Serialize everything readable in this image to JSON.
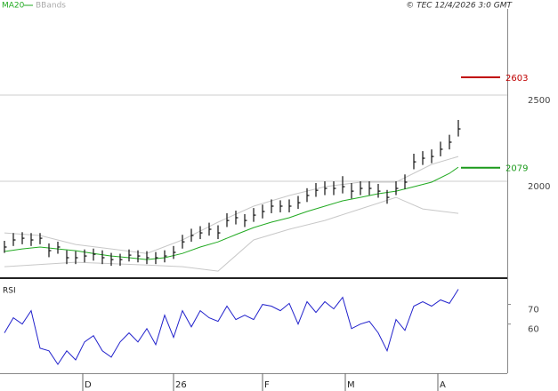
{
  "chart_data": [
    {
      "type": "ohlc",
      "source": "© TEC 12/4/2026 3:0 GMT",
      "x": [
        1,
        3,
        5,
        7,
        9,
        11,
        13,
        15,
        17,
        19,
        21,
        23,
        25,
        27,
        29,
        31,
        33,
        35,
        37,
        39,
        41,
        43,
        45,
        47,
        49,
        51,
        53,
        55,
        57,
        59,
        61,
        63,
        65,
        67,
        69,
        71,
        73,
        75,
        77,
        79,
        81,
        83,
        85,
        87,
        89,
        91,
        93,
        95,
        97,
        99,
        101,
        103
      ],
      "high": [
        1655,
        1700,
        1705,
        1700,
        1700,
        1640,
        1650,
        1600,
        1595,
        1605,
        1610,
        1600,
        1585,
        1580,
        1605,
        1600,
        1595,
        1590,
        1600,
        1625,
        1690,
        1725,
        1740,
        1760,
        1745,
        1815,
        1830,
        1810,
        1845,
        1865,
        1895,
        1890,
        1895,
        1915,
        1960,
        1990,
        2000,
        2000,
        2030,
        1990,
        2000,
        2000,
        1985,
        1950,
        2000,
        2040,
        2160,
        2175,
        2185,
        2230,
        2270,
        2356
      ],
      "low": [
        1585,
        1625,
        1635,
        1625,
        1635,
        1560,
        1580,
        1520,
        1520,
        1530,
        1540,
        1520,
        1510,
        1510,
        1535,
        1530,
        1520,
        1520,
        1530,
        1550,
        1610,
        1650,
        1665,
        1685,
        1665,
        1735,
        1750,
        1735,
        1765,
        1785,
        1815,
        1820,
        1820,
        1840,
        1880,
        1910,
        1920,
        1920,
        1930,
        1900,
        1920,
        1920,
        1905,
        1870,
        1920,
        1955,
        2070,
        2095,
        2105,
        2145,
        2185,
        2260
      ],
      "close": [
        1619,
        1660,
        1670,
        1660,
        1670,
        1598,
        1619,
        1557,
        1557,
        1567,
        1577,
        1557,
        1546,
        1546,
        1572,
        1567,
        1557,
        1557,
        1567,
        1588,
        1649,
        1686,
        1701,
        1722,
        1701,
        1773,
        1789,
        1773,
        1804,
        1825,
        1856,
        1856,
        1856,
        1876,
        1918,
        1948,
        1959,
        1959,
        1969,
        1943,
        1959,
        1959,
        1943,
        1907,
        1959,
        1995,
        2113,
        2134,
        2144,
        2186,
        2227,
        2304
      ],
      "bar_color": "#111111",
      "series": [
        {
          "name": "MA20",
          "color": "#22aa22",
          "x": [
            1,
            5,
            9,
            13,
            17,
            21,
            25,
            29,
            33,
            37,
            41,
            45,
            49,
            53,
            57,
            61,
            65,
            69,
            73,
            77,
            81,
            85,
            89,
            93,
            97,
            101,
            103
          ],
          "values": [
            1593,
            1608,
            1619,
            1608,
            1598,
            1582,
            1567,
            1557,
            1546,
            1557,
            1582,
            1619,
            1649,
            1691,
            1732,
            1763,
            1789,
            1825,
            1856,
            1887,
            1907,
            1928,
            1943,
            1969,
            1995,
            2046,
            2082
          ]
        },
        {
          "name": "BBands",
          "color": "#c8c8c8",
          "x": [
            1,
            9,
            17,
            25,
            33,
            41,
            49,
            57,
            65,
            73,
            81,
            89,
            97,
            103
          ],
          "values": [
            1701,
            1686,
            1634,
            1608,
            1582,
            1660,
            1763,
            1856,
            1918,
            1969,
            1995,
            1995,
            2098,
            2144
          ],
          "x_lower": [
            1,
            17,
            33,
            41,
            49,
            57,
            65,
            73,
            81,
            89,
            95,
            103
          ],
          "lower": [
            1505,
            1531,
            1515,
            1505,
            1479,
            1660,
            1722,
            1773,
            1840,
            1907,
            1840,
            1814
          ]
        }
      ],
      "levels": [
        {
          "value": 2603,
          "color": "#c00000"
        },
        {
          "value": 2079,
          "color": "#1a9a1a"
        }
      ],
      "ylim": [
        1454,
        3000
      ],
      "yticks": [
        2000,
        2500
      ],
      "xlim": [
        0,
        114
      ],
      "grid": true
    },
    {
      "type": "line",
      "title": "RSI",
      "x": [
        1,
        3,
        5,
        7,
        9,
        11,
        13,
        15,
        17,
        19,
        21,
        23,
        25,
        27,
        29,
        31,
        33,
        35,
        37,
        39,
        41,
        43,
        45,
        47,
        49,
        51,
        53,
        55,
        57,
        59,
        61,
        63,
        65,
        67,
        69,
        71,
        73,
        75,
        77,
        79,
        81,
        83,
        85,
        87,
        89,
        91,
        93,
        95,
        97,
        99,
        101,
        103
      ],
      "series": [
        {
          "color": "#2222cc",
          "values": [
            55.5,
            63.2,
            60,
            66.8,
            47.7,
            46.4,
            39.5,
            46.4,
            41.8,
            50.9,
            54.1,
            46.4,
            43.2,
            50.9,
            55.5,
            50.9,
            57.7,
            49.5,
            64.5,
            53.2,
            66.8,
            58.6,
            66.8,
            63.2,
            61.4,
            69.1,
            62.3,
            64.5,
            62.3,
            70,
            69.1,
            66.8,
            70.5,
            60,
            71.4,
            65.9,
            71.4,
            67.7,
            73.6,
            57.7,
            60,
            61.4,
            55.5,
            46.4,
            62.3,
            56.8,
            69.1,
            71.4,
            69.1,
            72.3,
            70.5,
            77.7
          ]
        }
      ],
      "ylim": [
        35,
        82
      ],
      "yticks": [
        70,
        60
      ],
      "xlim": [
        0,
        114
      ],
      "xticks": [
        {
          "value": 18.6,
          "label": "D"
        },
        {
          "value": 39,
          "label": "26"
        },
        {
          "value": 59,
          "label": "F"
        },
        {
          "value": 77.6,
          "label": "M"
        },
        {
          "value": 98.4,
          "label": "A"
        }
      ]
    }
  ]
}
